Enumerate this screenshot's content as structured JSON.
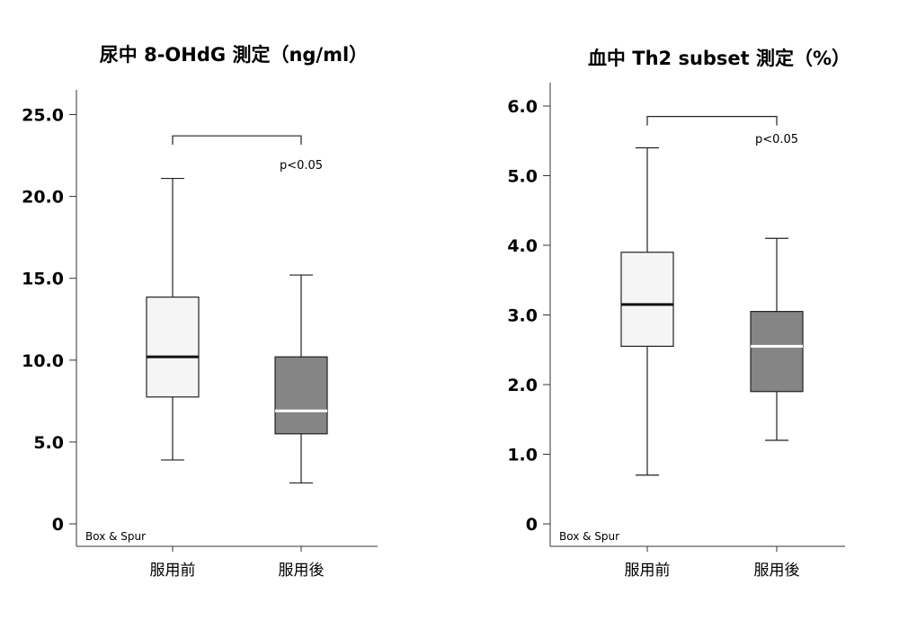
{
  "chart_data": [
    {
      "type": "box",
      "title": "尿中 8-OHdG 測定（ng/ml）",
      "note": "Box & Spur",
      "categories": [
        "服用前",
        "服用後"
      ],
      "ylim": [
        0,
        26.5
      ],
      "y_ticks": [
        0,
        5,
        10,
        15,
        20,
        25
      ],
      "y_tick_labels": [
        "0",
        "5.0",
        "10.0",
        "15.0",
        "20.0",
        "25.0"
      ],
      "series": [
        {
          "min": 3.9,
          "q1": 7.75,
          "median": 10.2,
          "q3": 13.85,
          "max": 21.1,
          "fill": "#f4f5f4",
          "median_color": "#111111"
        },
        {
          "min": 2.5,
          "q1": 5.5,
          "median": 6.9,
          "q3": 10.2,
          "max": 15.2,
          "fill": "#858585",
          "median_color": "#ffffff"
        }
      ],
      "significance": {
        "label": "p<0.05",
        "level": 23.7
      }
    },
    {
      "type": "box",
      "title": "血中 Th2 subset 測定（%）",
      "note": "Box & Spur",
      "categories": [
        "服用前",
        "服用後"
      ],
      "ylim": [
        0,
        6.35
      ],
      "y_ticks": [
        0,
        1,
        2,
        3,
        4,
        5,
        6
      ],
      "y_tick_labels": [
        "0",
        "1.0",
        "2.0",
        "3.0",
        "4.0",
        "5.0",
        "6.0"
      ],
      "series": [
        {
          "min": 0.7,
          "q1": 2.55,
          "median": 3.15,
          "q3": 3.9,
          "max": 5.4,
          "fill": "#f4f5f4",
          "median_color": "#111111"
        },
        {
          "min": 1.2,
          "q1": 1.9,
          "median": 2.55,
          "q3": 3.05,
          "max": 4.1,
          "fill": "#858585",
          "median_color": "#ffffff"
        }
      ],
      "significance": {
        "label": "p<0.05",
        "level": 5.85
      }
    }
  ]
}
